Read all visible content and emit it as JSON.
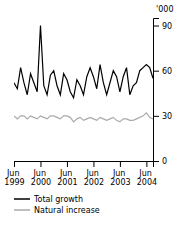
{
  "chart_data": {
    "type": "line",
    "y_label": "'000",
    "categories": [
      "Jun 1999",
      null,
      null,
      null,
      null,
      null,
      null,
      null,
      "Jun 2000",
      null,
      null,
      null,
      null,
      null,
      null,
      null,
      "Jun 2001",
      null,
      null,
      null,
      null,
      null,
      null,
      null,
      "Jun 2002",
      null,
      null,
      null,
      null,
      null,
      null,
      null,
      "Jun 2003",
      null,
      null,
      null,
      null,
      null,
      null,
      null,
      "Jun 2004",
      null,
      null
    ],
    "series": [
      {
        "name": "Total growth",
        "color": "#000000",
        "values": [
          52,
          48,
          62,
          52,
          44,
          58,
          52,
          46,
          90,
          50,
          44,
          57,
          60,
          50,
          44,
          58,
          54,
          46,
          42,
          54,
          50,
          44,
          56,
          62,
          56,
          48,
          64,
          52,
          44,
          52,
          60,
          56,
          46,
          56,
          62,
          44,
          50,
          52,
          60,
          62,
          64,
          62,
          55
        ]
      },
      {
        "name": "Natural increase",
        "color": "#aaaaaa",
        "values": [
          30,
          28,
          30,
          30,
          28,
          30,
          29,
          28,
          30,
          29,
          28,
          30,
          30,
          29,
          28,
          30,
          30,
          29,
          26,
          28,
          29,
          27,
          28,
          29,
          28,
          27,
          29,
          28,
          27,
          28,
          29,
          27,
          26,
          28,
          28,
          27,
          27,
          28,
          29,
          30,
          32,
          29,
          28
        ]
      }
    ],
    "ylim": [
      0,
      95
    ],
    "yticks": [
      0,
      30,
      60,
      90
    ],
    "grid": false,
    "legend": "lower left"
  }
}
